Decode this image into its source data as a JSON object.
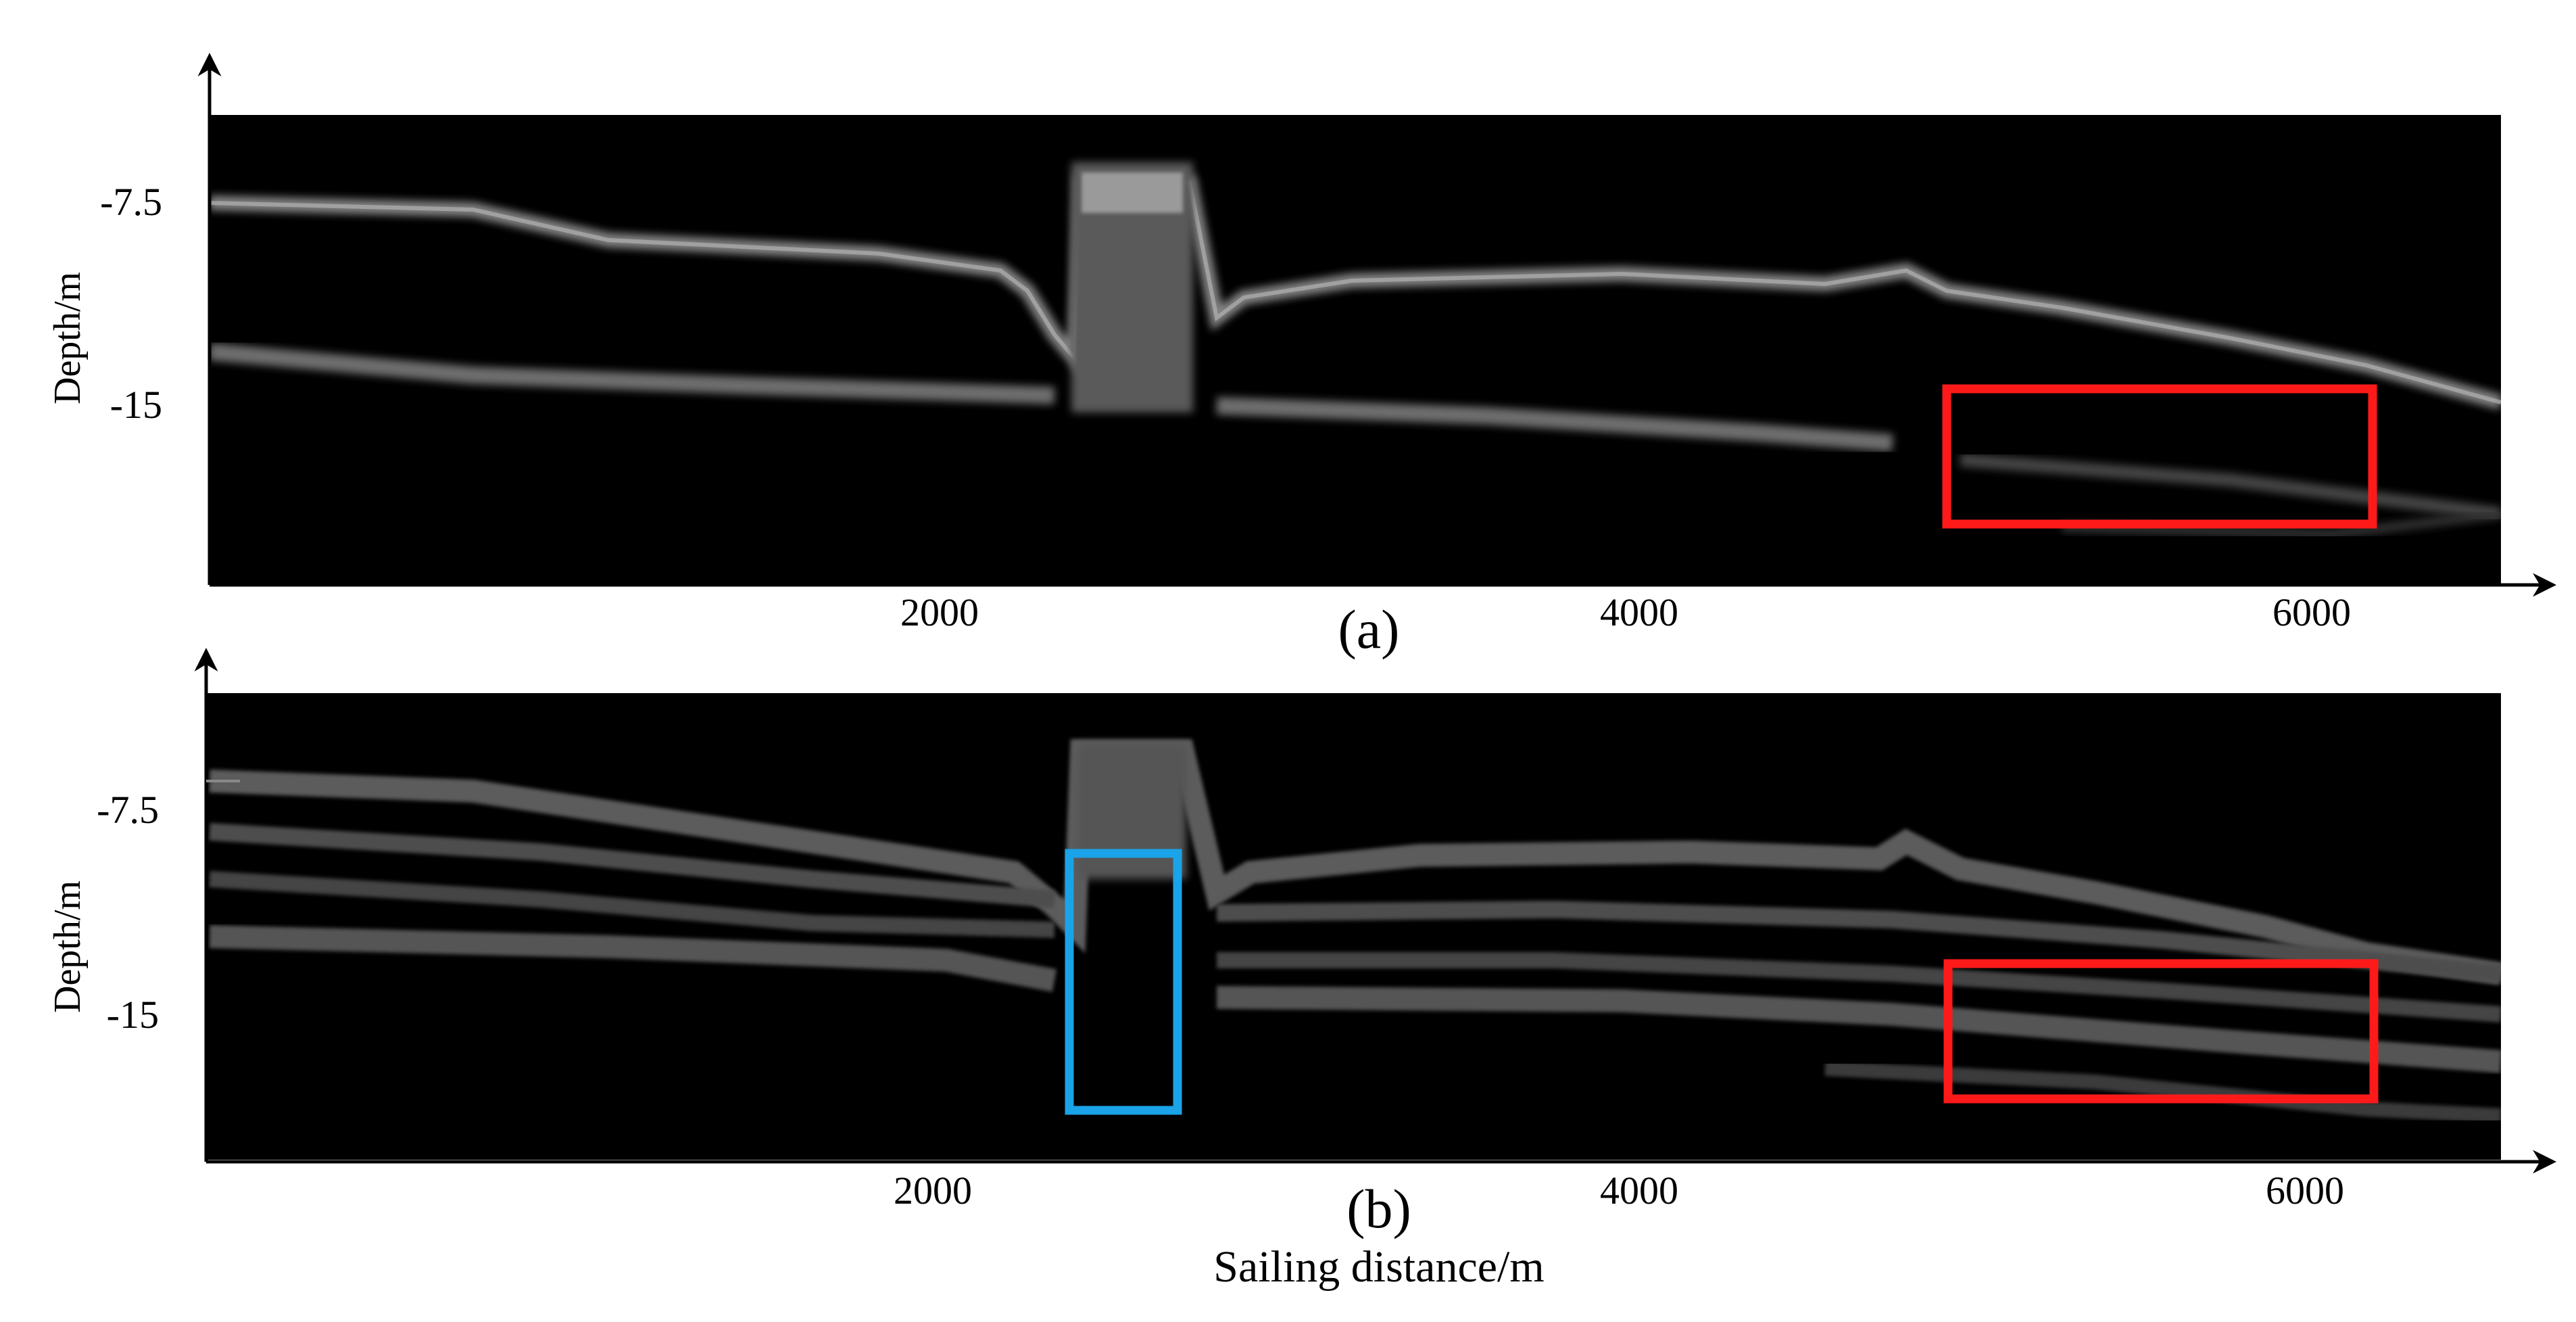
{
  "figure": {
    "xlabel": "Sailing distance/m",
    "colors": {
      "background": "#000000",
      "reflector": "#8a8a8a",
      "highlight_red": "#ff1a1a",
      "highlight_blue": "#1aa3e8",
      "axis": "#000000"
    },
    "panels": [
      {
        "id": "a",
        "label": "(a)",
        "ylabel": "Depth/m",
        "y_ticks": [
          "-7.5",
          "-15"
        ],
        "x_ticks": [
          "2000",
          "4000",
          "6000"
        ],
        "highlights": [
          {
            "color": "red",
            "x_range_m": [
              5250,
              6350
            ],
            "depth_range_m": [
              -14.6,
              -19.3
            ]
          }
        ]
      },
      {
        "id": "b",
        "label": "(b)",
        "ylabel": "Depth/m",
        "y_ticks": [
          "-7.5",
          "-15"
        ],
        "x_ticks": [
          "2000",
          "4000",
          "6000"
        ],
        "highlights": [
          {
            "color": "blue",
            "x_range_m": [
              2420,
              2700
            ],
            "depth_range_m": [
              -9.8,
              -19.3
            ]
          },
          {
            "color": "red",
            "x_range_m": [
              5250,
              6350
            ],
            "depth_range_m": [
              -13.3,
              -18.2
            ]
          }
        ]
      }
    ]
  }
}
